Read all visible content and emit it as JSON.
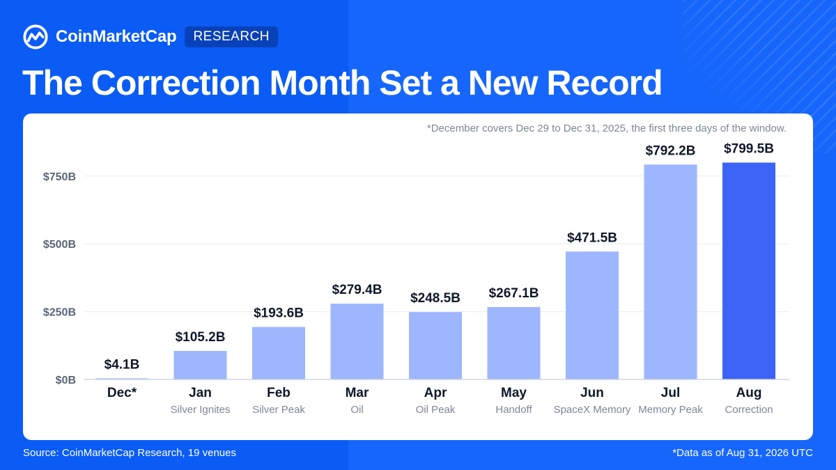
{
  "brand": {
    "name": "CoinMarketCap",
    "badge": "RESEARCH",
    "logo_icon": "coinmarketcap-logo-icon"
  },
  "title": "The Correction Month Set a New Record",
  "footnote_top": "*December covers Dec 29 to Dec 31, 2025, the first three days of the window.",
  "source": "Source: CoinMarketCap Research, 19 venues",
  "as_of": "*Data as of Aug 31, 2026 UTC",
  "colors": {
    "background": "#0a5cf5",
    "bar": "#9db6fd",
    "bar_highlight": "#3b64f7",
    "badge": "#0941b8"
  },
  "chart_data": {
    "type": "bar",
    "categories": [
      "Dec*",
      "Jan",
      "Feb",
      "Mar",
      "Apr",
      "May",
      "Jun",
      "Jul",
      "Aug"
    ],
    "subtitles": [
      "",
      "Silver Ignites",
      "Silver Peak",
      "Oil",
      "Oil Peak",
      "Handoff",
      "SpaceX Memory",
      "Memory Peak",
      "Correction"
    ],
    "values": [
      4.1,
      105.2,
      193.6,
      279.4,
      248.5,
      267.1,
      471.5,
      792.2,
      799.5
    ],
    "value_labels": [
      "$4.1B",
      "$105.2B",
      "$193.6B",
      "$279.4B",
      "$248.5B",
      "$267.1B",
      "$471.5B",
      "$792.2B",
      "$799.5B"
    ],
    "highlight_index": 8,
    "y_ticks": [
      0,
      250,
      500,
      750
    ],
    "y_tick_labels": [
      "$0B",
      "$250B",
      "$500B",
      "$750B"
    ],
    "ylim": [
      0,
      800
    ],
    "grid": true,
    "legend": "none"
  }
}
